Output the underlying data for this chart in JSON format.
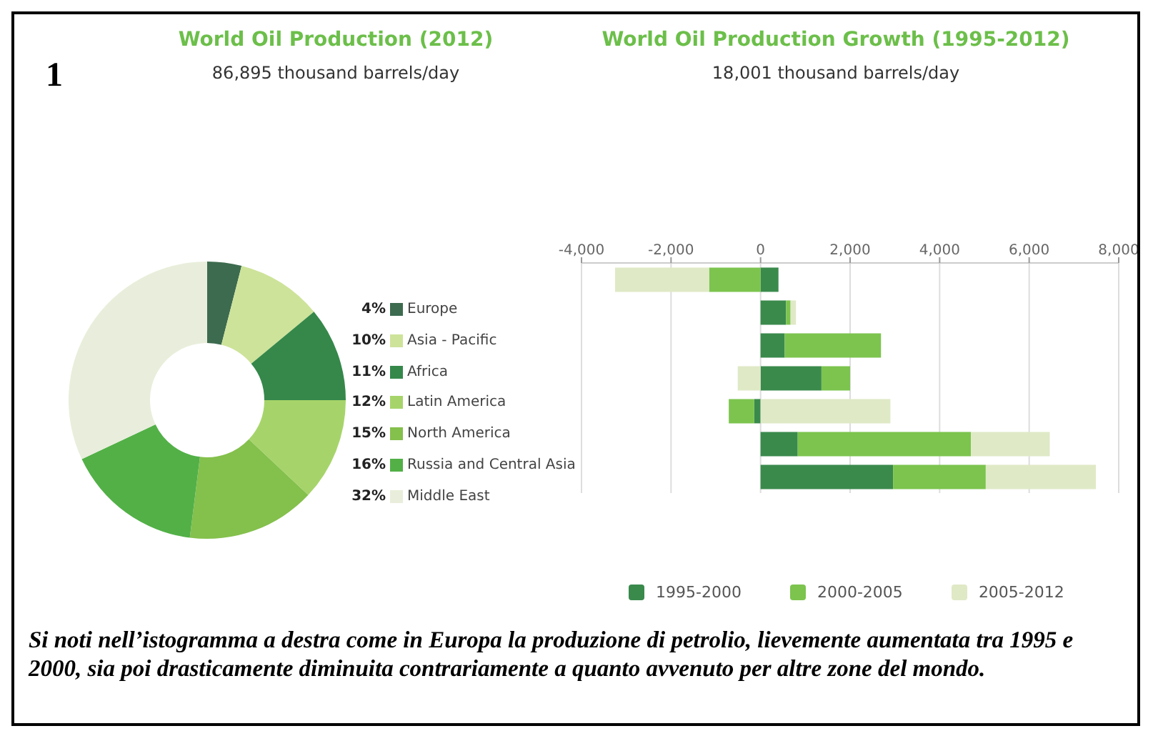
{
  "chart_data": [
    {
      "type": "donut",
      "title": "World Oil Production (2012)",
      "subtitle": "86,895 thousand barrels/day",
      "annotations": [
        "1"
      ],
      "categories": [
        "Europe",
        "Asia - Pacific",
        "Africa",
        "Latin America",
        "North America",
        "Russia and Central Asia",
        "Middle East"
      ],
      "values": [
        4,
        10,
        11,
        12,
        15,
        16,
        32
      ],
      "value_labels": [
        "4%",
        "10%",
        "11%",
        "12%",
        "15%",
        "16%",
        "32%"
      ],
      "legend": "right",
      "colors": [
        "#3d6b4f",
        "#cde39a",
        "#35884a",
        "#a6d46a",
        "#84c04c",
        "#52b047",
        "#e8eedb"
      ]
    },
    {
      "type": "bar",
      "orientation": "horizontal",
      "stacked": true,
      "title": "World Oil Production Growth (1995-2012)",
      "subtitle": "18,001 thousand barrels/day",
      "annotations": [
        "Si noti nell’istogramma a destra come in Europa la produzione di petrolio, lievemente aumentata tra 1995 e 2000, sia poi drasticamente diminuita contrariamente a quanto avvenuto per altre zone del mondo."
      ],
      "categories": [
        null,
        null,
        null,
        null,
        null,
        null,
        null
      ],
      "grid": "x",
      "legend": "bottom",
      "xlim": [
        -4000,
        8000
      ],
      "xticks": [
        {
          "value": -4000,
          "label": "-4,000"
        },
        {
          "value": -2000,
          "label": "-2,000"
        },
        0,
        {
          "value": 2000,
          "label": "2,000"
        },
        {
          "value": 4000,
          "label": "4,000"
        },
        {
          "value": 6000,
          "label": "6,000"
        },
        {
          "value": 8000,
          "label": "8,000"
        }
      ],
      "series": [
        {
          "name": "1995-2000",
          "color": "#3a8a4c",
          "values": [
            400,
            570,
            540,
            1360,
            -140,
            830,
            2960
          ]
        },
        {
          "name": "2000-2005",
          "color": "#7cc44e",
          "values": [
            -1150,
            100,
            2150,
            640,
            -570,
            3870,
            2070
          ]
        },
        {
          "name": "2005-2012",
          "color": "#dfe9c6",
          "values": [
            -2100,
            120,
            0,
            -510,
            2900,
            1760,
            2460
          ]
        }
      ]
    }
  ]
}
